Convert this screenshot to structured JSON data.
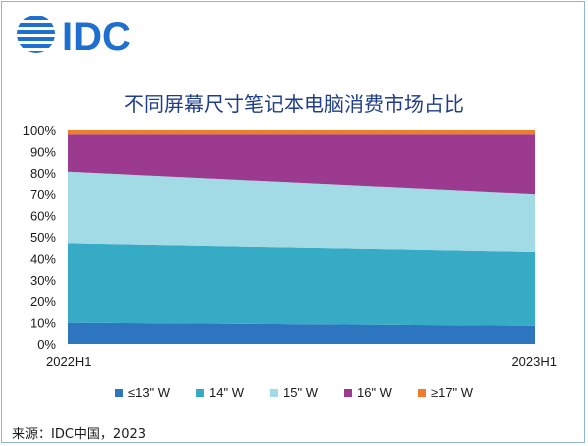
{
  "brand": {
    "logo_text": "IDC",
    "logo_color": "#1f6fd0"
  },
  "chart_data": {
    "type": "area",
    "stacked": true,
    "percent": true,
    "title": "不同屏幕尺寸笔记本电脑消费市场占比",
    "x": [
      "2022H1",
      "2023H1"
    ],
    "y_ticks": [
      "0%",
      "10%",
      "20%",
      "30%",
      "40%",
      "50%",
      "60%",
      "70%",
      "80%",
      "90%",
      "100%"
    ],
    "ylim": [
      0,
      100
    ],
    "series": [
      {
        "name": "≤13\" W",
        "color": "#2e75c0",
        "values": [
          10,
          8.5
        ]
      },
      {
        "name": "14\" W",
        "color": "#35abc6",
        "values": [
          37,
          34.5
        ]
      },
      {
        "name": "15\" W",
        "color": "#a2dbe6",
        "values": [
          33.5,
          27
        ]
      },
      {
        "name": "16\" W",
        "color": "#9b3a8e",
        "values": [
          17.5,
          28
        ]
      },
      {
        "name": "≥17\" W",
        "color": "#f07d2a",
        "values": [
          2,
          2
        ]
      }
    ],
    "legend_position": "bottom",
    "grid": false
  },
  "source": "来源：IDC中国，2023"
}
